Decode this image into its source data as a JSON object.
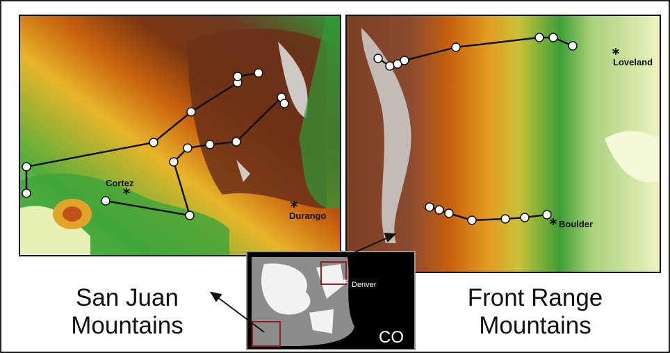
{
  "left_map": {
    "places": [
      "Cortez",
      "Durango"
    ],
    "title_lines": [
      "San Juan",
      "Mountains"
    ]
  },
  "right_map": {
    "places": [
      "Loveland",
      "Boulder"
    ],
    "title_lines": [
      "Front Range",
      "Mountains"
    ]
  },
  "inset": {
    "city": "Denver",
    "state": "CO"
  }
}
